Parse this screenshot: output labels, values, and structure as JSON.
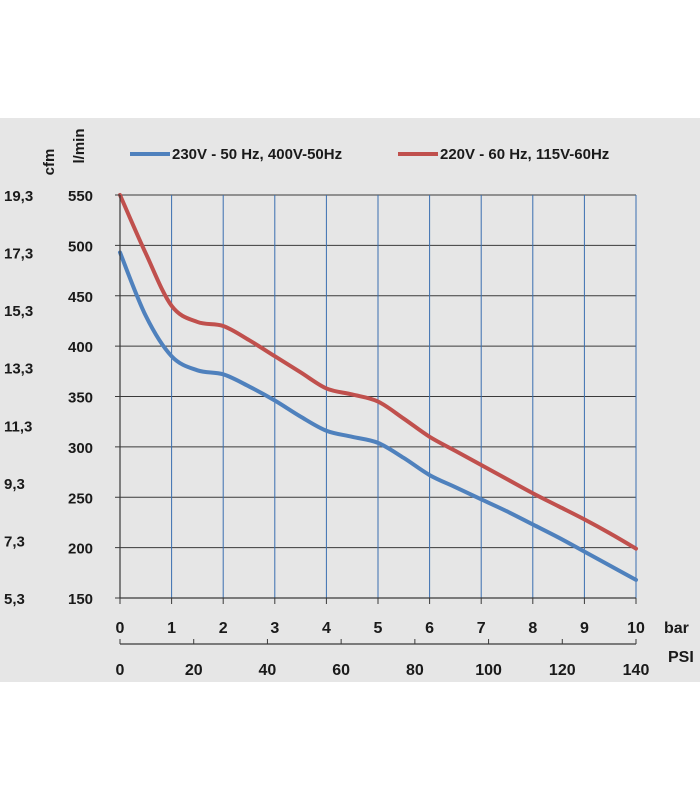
{
  "chart_data": {
    "type": "line",
    "legend": {
      "placement": "top",
      "entries": [
        {
          "label": "230V - 50 Hz, 400V-50Hz",
          "color": "#4f81bd"
        },
        {
          "label": "220V - 60 Hz, 115V-60Hz",
          "color": "#c0504d"
        }
      ]
    },
    "y_axis_primary": {
      "label": "l/min",
      "range": [
        150,
        550
      ],
      "ticks": [
        "150",
        "200",
        "250",
        "300",
        "350",
        "400",
        "450",
        "500",
        "550"
      ]
    },
    "y_axis_secondary": {
      "label": "cfm",
      "ticks": [
        "5,3",
        "7,3",
        "9,3",
        "11,3",
        "13,3",
        "15,3",
        "17,3",
        "19,3"
      ]
    },
    "x_axis_primary": {
      "label": "bar",
      "range": [
        0,
        10
      ],
      "ticks": [
        "0",
        "1",
        "2",
        "3",
        "4",
        "5",
        "6",
        "7",
        "8",
        "9",
        "10"
      ]
    },
    "x_axis_secondary": {
      "label": "PSI",
      "ticks": [
        "0",
        "20",
        "40",
        "60",
        "80",
        "100",
        "120",
        "140"
      ]
    },
    "grid": true,
    "series": [
      {
        "name": "230V - 50 Hz, 400V-50Hz",
        "color": "#4f81bd",
        "x": [
          0,
          0.5,
          1,
          1.5,
          2,
          2.5,
          3,
          3.5,
          4,
          4.5,
          5,
          5.5,
          6,
          6.5,
          7,
          7.5,
          8,
          8.5,
          9,
          9.5,
          10
        ],
        "y": [
          493,
          430,
          390,
          376,
          372,
          360,
          346,
          330,
          316,
          310,
          304,
          289,
          272,
          260,
          248,
          236,
          223,
          210,
          196,
          182,
          168
        ]
      },
      {
        "name": "220V - 60 Hz, 115V-60Hz",
        "color": "#c0504d",
        "x": [
          0,
          0.5,
          1,
          1.5,
          2,
          2.5,
          3,
          3.5,
          4,
          4.5,
          5,
          5.5,
          6,
          6.5,
          7,
          7.5,
          8,
          8.5,
          9,
          9.5,
          10
        ],
        "y": [
          550,
          492,
          440,
          424,
          420,
          406,
          390,
          374,
          358,
          352,
          345,
          328,
          310,
          296,
          282,
          268,
          254,
          241,
          228,
          214,
          199
        ]
      }
    ]
  }
}
